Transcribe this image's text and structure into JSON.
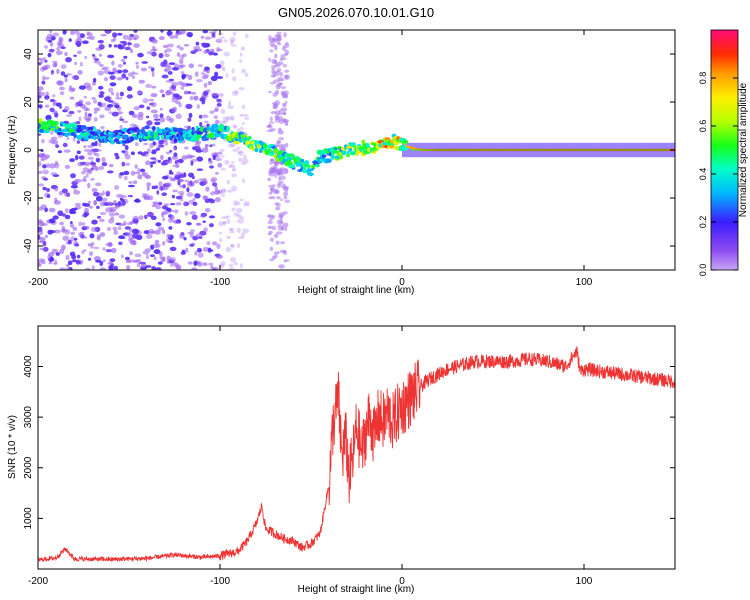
{
  "title": "GN05.2026.070.10.01.G10",
  "colors": {
    "snr_line": "#ee3333",
    "ridge_peak": "#e03a3a",
    "cloud": "#6a1fe8",
    "cloud_light": "#c9a8f5",
    "frame": "#000000"
  },
  "chart_data": [
    {
      "type": "heatmap",
      "title": "GN05.2026.070.10.01.G10",
      "xlabel": "Height of straight line (km)",
      "ylabel": "Frequency (Hz)",
      "xlim": [
        -200,
        150
      ],
      "ylim": [
        -50,
        50
      ],
      "xticks": [
        -200,
        -100,
        0,
        100
      ],
      "yticks": [
        -40,
        -20,
        0,
        20,
        40
      ],
      "colorbar": {
        "label": "Normalized spectral amplitude",
        "range": [
          0,
          1
        ],
        "ticks": [
          0.0,
          0.2,
          0.4,
          0.6,
          0.8
        ],
        "colormap": "rainbow"
      },
      "ridge": {
        "x": [
          -200,
          -190,
          -180,
          -160,
          -140,
          -120,
          -110,
          -100,
          -90,
          -80,
          -70,
          -60,
          -50,
          -45,
          -40,
          -35,
          -30,
          -20,
          -10,
          -5,
          0,
          5,
          10,
          20,
          50,
          100,
          150
        ],
        "freq": [
          10,
          9,
          8,
          5,
          7,
          6,
          7,
          8,
          5,
          2,
          -1,
          -5,
          -8,
          -3,
          -2,
          -1,
          0,
          1,
          2,
          4,
          2,
          1,
          0,
          0,
          0,
          0,
          0
        ],
        "amplitude": [
          0.5,
          0.45,
          0.4,
          0.3,
          0.4,
          0.35,
          0.4,
          0.5,
          0.55,
          0.55,
          0.5,
          0.45,
          0.45,
          0.4,
          0.45,
          0.5,
          0.6,
          0.65,
          0.7,
          0.7,
          0.75,
          0.8,
          0.85,
          0.9,
          0.9,
          0.9,
          0.9
        ]
      }
    },
    {
      "type": "line",
      "xlabel": "Height of straight line (km)",
      "ylabel": "SNR (10 * v/v)",
      "xlim": [
        -200,
        150
      ],
      "ylim": [
        0,
        4800
      ],
      "xticks": [
        -200,
        -100,
        0,
        100
      ],
      "yticks": [
        1000,
        2000,
        3000,
        4000
      ],
      "series": [
        {
          "name": "SNR",
          "x": [
            -200,
            -190,
            -185,
            -180,
            -160,
            -140,
            -125,
            -110,
            -100,
            -90,
            -85,
            -80,
            -77,
            -75,
            -70,
            -65,
            -60,
            -55,
            -50,
            -45,
            -40,
            -38,
            -35,
            -33,
            -31,
            -29,
            -27,
            -25,
            -22,
            -20,
            -18,
            -15,
            -13,
            -10,
            -8,
            -5,
            -2,
            0,
            5,
            10,
            15,
            20,
            25,
            30,
            35,
            40,
            50,
            60,
            70,
            80,
            90,
            96,
            98,
            100,
            110,
            120,
            130,
            140,
            150
          ],
          "y": [
            180,
            220,
            400,
            200,
            190,
            210,
            280,
            230,
            260,
            350,
            550,
            900,
            1250,
            800,
            700,
            600,
            560,
            420,
            500,
            700,
            1700,
            2800,
            3400,
            2200,
            2600,
            1800,
            2200,
            2800,
            2300,
            2700,
            3000,
            2600,
            3000,
            2900,
            3100,
            2900,
            3100,
            3200,
            3400,
            3600,
            3750,
            3850,
            3950,
            4000,
            4050,
            4100,
            4100,
            4100,
            4150,
            4100,
            4000,
            4300,
            3900,
            3950,
            3900,
            3850,
            3800,
            3750,
            3700
          ]
        }
      ]
    }
  ]
}
